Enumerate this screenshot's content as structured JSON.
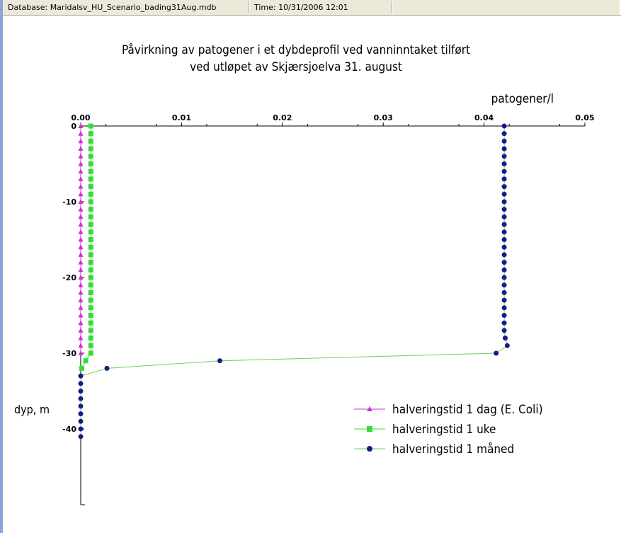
{
  "status": {
    "database": "Database: Maridalsv_HU_Scenario_bading31Aug.mdb",
    "time": "Time: 10/31/2006 12:01"
  },
  "chart_data": {
    "type": "line",
    "title_line1": "Påvirkning av patogener i et dybdeprofil ved vanninntaket tilført",
    "title_line2": "ved utløpet av Skjærsjoelva 31. august",
    "x_unit_label": "patogener/l",
    "y_unit_label": "dyp, m",
    "xlim": [
      0,
      0.05
    ],
    "ylim": [
      -50,
      0
    ],
    "x_tick_labels": [
      "0.00",
      "0.01",
      "0.02",
      "0.03",
      "0.04",
      "0.05"
    ],
    "y_tick_labels": [
      "0",
      "-10",
      "-20",
      "-30",
      "-40"
    ],
    "grid": false,
    "legend_position": "bottom-right",
    "series": [
      {
        "name": "halveringstid 1 dag (E. Coli)",
        "color": "#cc33cc",
        "marker": "triangle",
        "points": [
          {
            "x": 0,
            "y": 0
          },
          {
            "x": 0,
            "y": -1
          },
          {
            "x": 0,
            "y": -2
          },
          {
            "x": 0,
            "y": -3
          },
          {
            "x": 0,
            "y": -4
          },
          {
            "x": 0,
            "y": -5
          },
          {
            "x": 0,
            "y": -6
          },
          {
            "x": 0,
            "y": -7
          },
          {
            "x": 0,
            "y": -8
          },
          {
            "x": 0,
            "y": -9
          },
          {
            "x": 0,
            "y": -10
          },
          {
            "x": 0,
            "y": -11
          },
          {
            "x": 0,
            "y": -12
          },
          {
            "x": 0,
            "y": -13
          },
          {
            "x": 0,
            "y": -14
          },
          {
            "x": 0,
            "y": -15
          },
          {
            "x": 0,
            "y": -16
          },
          {
            "x": 0,
            "y": -17
          },
          {
            "x": 0,
            "y": -18
          },
          {
            "x": 0,
            "y": -19
          },
          {
            "x": 0,
            "y": -20
          },
          {
            "x": 0,
            "y": -21
          },
          {
            "x": 0,
            "y": -22
          },
          {
            "x": 0,
            "y": -23
          },
          {
            "x": 0,
            "y": -24
          },
          {
            "x": 0,
            "y": -25
          },
          {
            "x": 0,
            "y": -26
          },
          {
            "x": 0,
            "y": -27
          },
          {
            "x": 0,
            "y": -28
          },
          {
            "x": 0,
            "y": -29
          },
          {
            "x": 0,
            "y": -30
          }
        ]
      },
      {
        "name": "halveringstid 1 uke",
        "color": "#33dd33",
        "marker": "square",
        "points": [
          {
            "x": 0.001,
            "y": 0
          },
          {
            "x": 0.001,
            "y": -1
          },
          {
            "x": 0.001,
            "y": -2
          },
          {
            "x": 0.001,
            "y": -3
          },
          {
            "x": 0.001,
            "y": -4
          },
          {
            "x": 0.001,
            "y": -5
          },
          {
            "x": 0.001,
            "y": -6
          },
          {
            "x": 0.001,
            "y": -7
          },
          {
            "x": 0.001,
            "y": -8
          },
          {
            "x": 0.001,
            "y": -9
          },
          {
            "x": 0.001,
            "y": -10
          },
          {
            "x": 0.001,
            "y": -11
          },
          {
            "x": 0.001,
            "y": -12
          },
          {
            "x": 0.001,
            "y": -13
          },
          {
            "x": 0.001,
            "y": -14
          },
          {
            "x": 0.001,
            "y": -15
          },
          {
            "x": 0.001,
            "y": -16
          },
          {
            "x": 0.001,
            "y": -17
          },
          {
            "x": 0.001,
            "y": -18
          },
          {
            "x": 0.001,
            "y": -19
          },
          {
            "x": 0.001,
            "y": -20
          },
          {
            "x": 0.001,
            "y": -21
          },
          {
            "x": 0.001,
            "y": -22
          },
          {
            "x": 0.001,
            "y": -23
          },
          {
            "x": 0.001,
            "y": -24
          },
          {
            "x": 0.001,
            "y": -25
          },
          {
            "x": 0.001,
            "y": -26
          },
          {
            "x": 0.001,
            "y": -27
          },
          {
            "x": 0.001,
            "y": -28
          },
          {
            "x": 0.001,
            "y": -29
          },
          {
            "x": 0.001,
            "y": -30
          },
          {
            "x": 0.0005,
            "y": -31
          },
          {
            "x": 0.0001,
            "y": -32
          }
        ]
      },
      {
        "name": "halveringstid 1 måned",
        "color": "#1a1a8c",
        "line_color": "#77cc55",
        "marker": "circle",
        "points": [
          {
            "x": 0.042,
            "y": 0
          },
          {
            "x": 0.042,
            "y": -1
          },
          {
            "x": 0.042,
            "y": -2
          },
          {
            "x": 0.042,
            "y": -3
          },
          {
            "x": 0.042,
            "y": -4
          },
          {
            "x": 0.042,
            "y": -5
          },
          {
            "x": 0.042,
            "y": -6
          },
          {
            "x": 0.042,
            "y": -7
          },
          {
            "x": 0.042,
            "y": -8
          },
          {
            "x": 0.042,
            "y": -9
          },
          {
            "x": 0.042,
            "y": -10
          },
          {
            "x": 0.042,
            "y": -11
          },
          {
            "x": 0.042,
            "y": -12
          },
          {
            "x": 0.042,
            "y": -13
          },
          {
            "x": 0.042,
            "y": -14
          },
          {
            "x": 0.042,
            "y": -15
          },
          {
            "x": 0.042,
            "y": -16
          },
          {
            "x": 0.042,
            "y": -17
          },
          {
            "x": 0.042,
            "y": -18
          },
          {
            "x": 0.042,
            "y": -19
          },
          {
            "x": 0.042,
            "y": -20
          },
          {
            "x": 0.042,
            "y": -21
          },
          {
            "x": 0.042,
            "y": -22
          },
          {
            "x": 0.042,
            "y": -23
          },
          {
            "x": 0.042,
            "y": -24
          },
          {
            "x": 0.042,
            "y": -25
          },
          {
            "x": 0.042,
            "y": -26
          },
          {
            "x": 0.042,
            "y": -27
          },
          {
            "x": 0.0421,
            "y": -28
          },
          {
            "x": 0.0423,
            "y": -29
          },
          {
            "x": 0.0412,
            "y": -30
          },
          {
            "x": 0.0138,
            "y": -31
          },
          {
            "x": 0.0026,
            "y": -32
          },
          {
            "x": 0,
            "y": -33
          },
          {
            "x": 0,
            "y": -34
          },
          {
            "x": 0,
            "y": -35
          },
          {
            "x": 0,
            "y": -36
          },
          {
            "x": 0,
            "y": -37
          },
          {
            "x": 0,
            "y": -38
          },
          {
            "x": 0,
            "y": -39
          },
          {
            "x": 0,
            "y": -40
          },
          {
            "x": 0,
            "y": -41
          }
        ]
      }
    ]
  }
}
